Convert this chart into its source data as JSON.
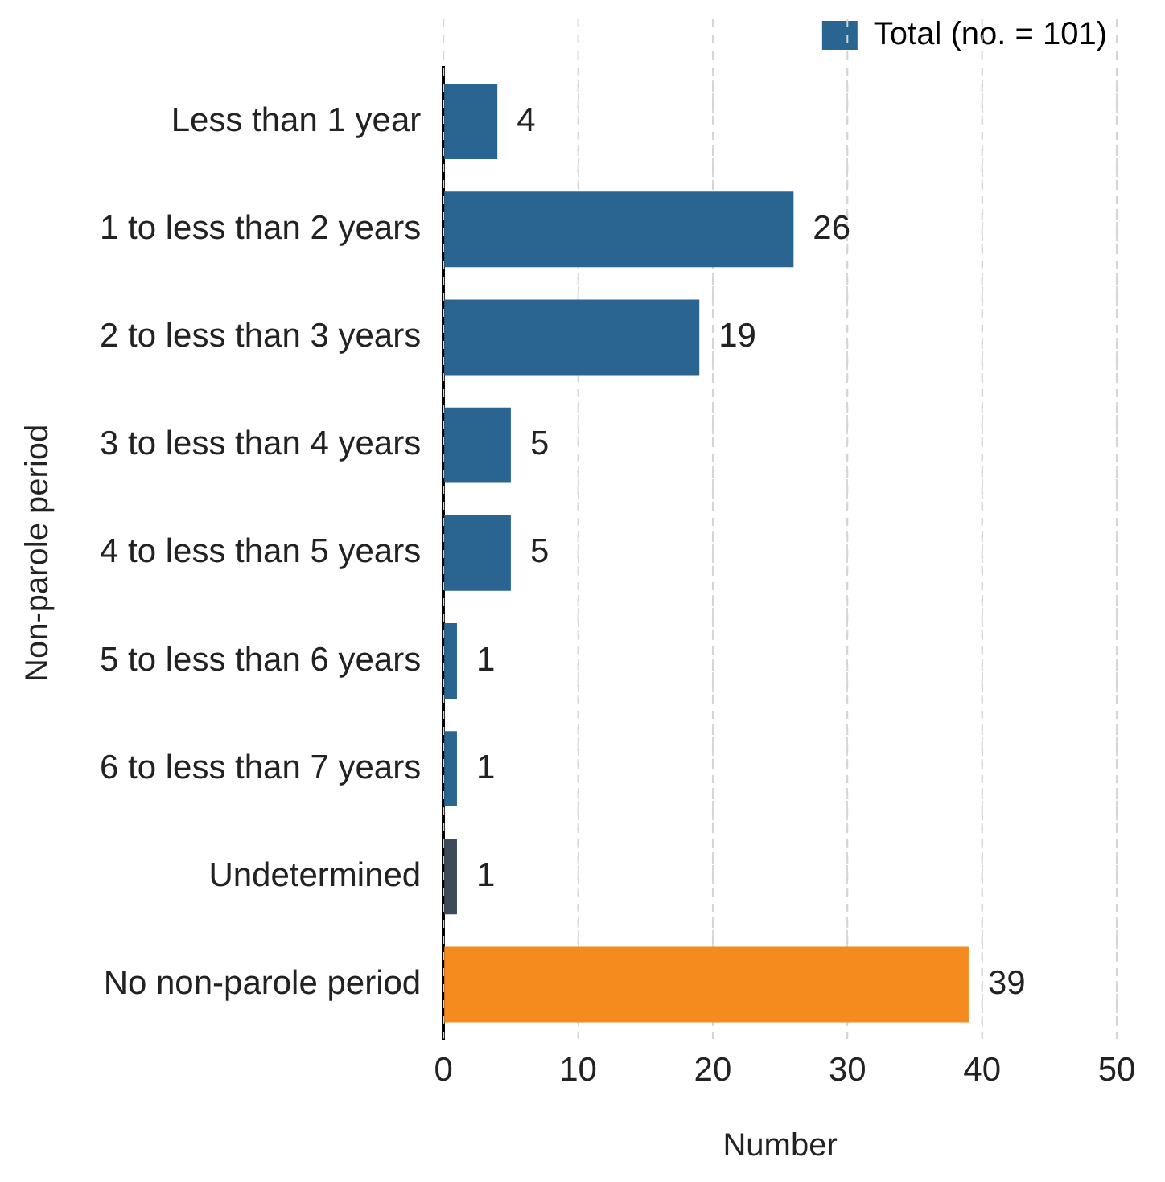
{
  "chart_data": {
    "type": "bar",
    "orientation": "horizontal",
    "xlabel": "Number",
    "ylabel": "Non-parole period",
    "categories": [
      "Less than 1 year",
      "1 to less than 2 years",
      "2 to less than 3 years",
      "3 to less than 4 years",
      "4 to less than 5 years",
      "5 to less than 6 years",
      "6 to less than 7 years",
      "Undetermined",
      "No non-parole period"
    ],
    "series": [
      {
        "name": "Total (no. = 101)",
        "color": "#2a6592",
        "colors": [
          "#2a6592",
          "#2a6592",
          "#2a6592",
          "#2a6592",
          "#2a6592",
          "#2a6592",
          "#2a6592",
          "#3d4a5a",
          "#f58a1f"
        ],
        "values": [
          4,
          26,
          19,
          5,
          5,
          1,
          1,
          1,
          39
        ]
      }
    ],
    "xlim": [
      0,
      50
    ],
    "xticks": [
      0,
      10,
      20,
      30,
      40,
      50
    ],
    "grid": "x",
    "legend": "top right",
    "data_labels": true
  }
}
